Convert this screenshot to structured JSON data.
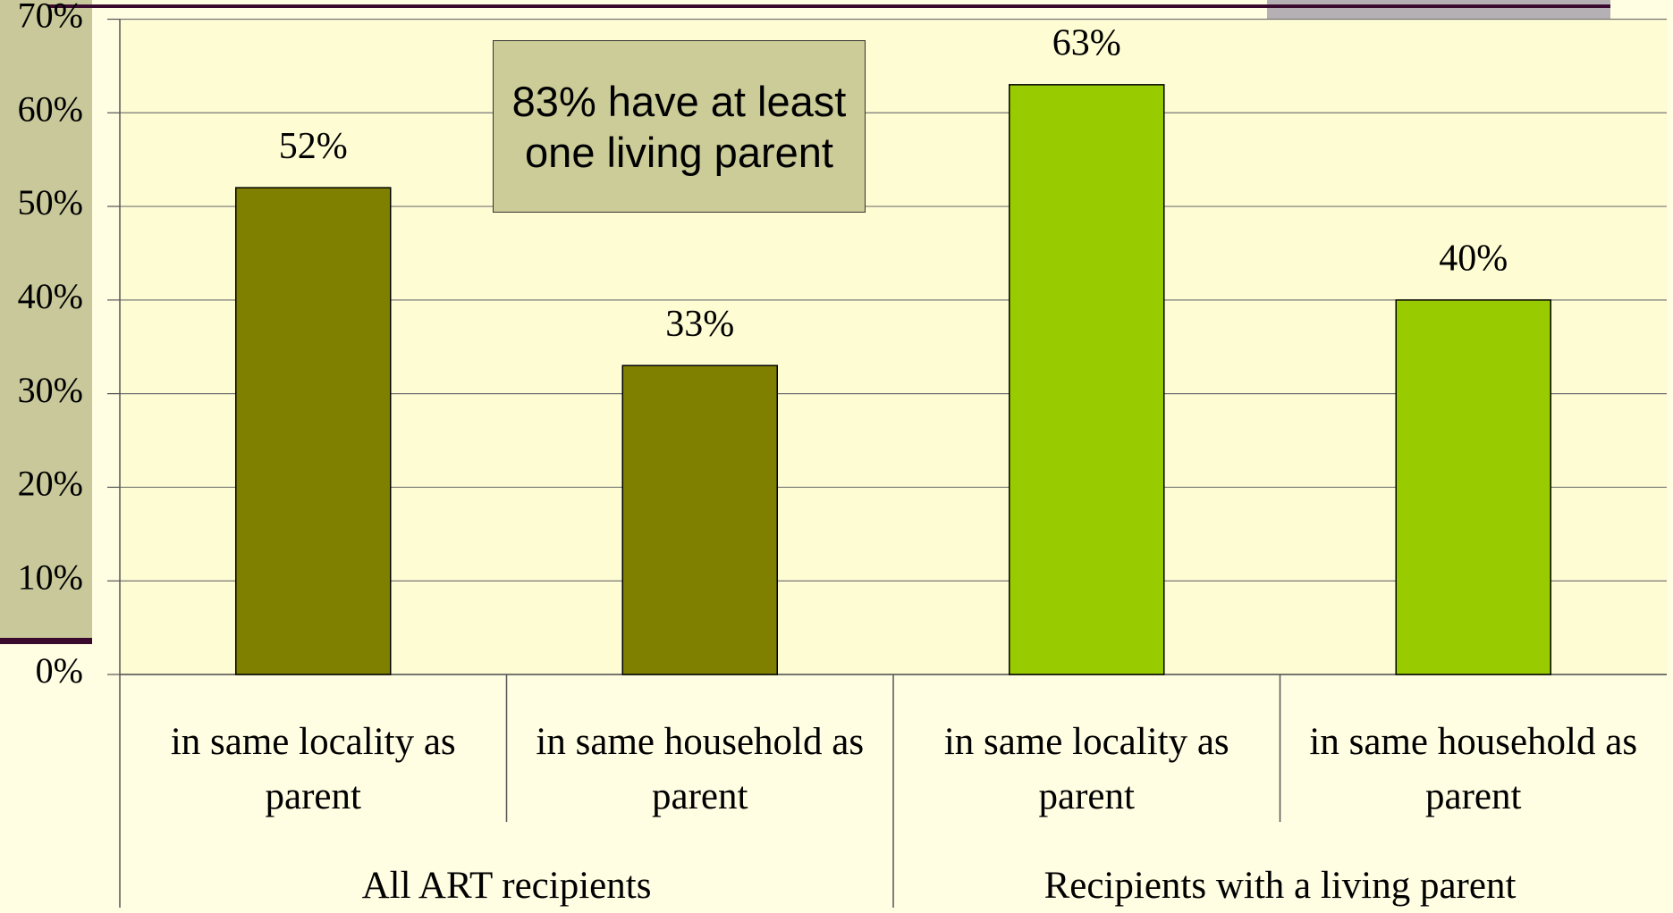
{
  "chart_data": {
    "type": "bar",
    "annotation": "83% have at least one living parent",
    "series": [
      {
        "name": "All ART recipients",
        "color": "#808000",
        "categories": [
          "in same locality as parent",
          "in same household as parent"
        ],
        "values": [
          52,
          33
        ],
        "value_labels": [
          "52%",
          "33%"
        ]
      },
      {
        "name": "Recipients with a living parent",
        "color": "#99cc00",
        "categories": [
          "in same locality as parent",
          "in same household as parent"
        ],
        "values": [
          63,
          40
        ],
        "value_labels": [
          "63%",
          "40%"
        ]
      }
    ],
    "ylim": [
      0,
      70
    ],
    "yticks": [
      {
        "value": 0,
        "label": "0%"
      },
      {
        "value": 10,
        "label": "10%"
      },
      {
        "value": 20,
        "label": "20%"
      },
      {
        "value": 30,
        "label": "30%"
      },
      {
        "value": 40,
        "label": "40%"
      },
      {
        "value": 50,
        "label": "50%"
      },
      {
        "value": 60,
        "label": "60%"
      },
      {
        "value": 70,
        "label": "70%"
      }
    ],
    "grid": true
  }
}
